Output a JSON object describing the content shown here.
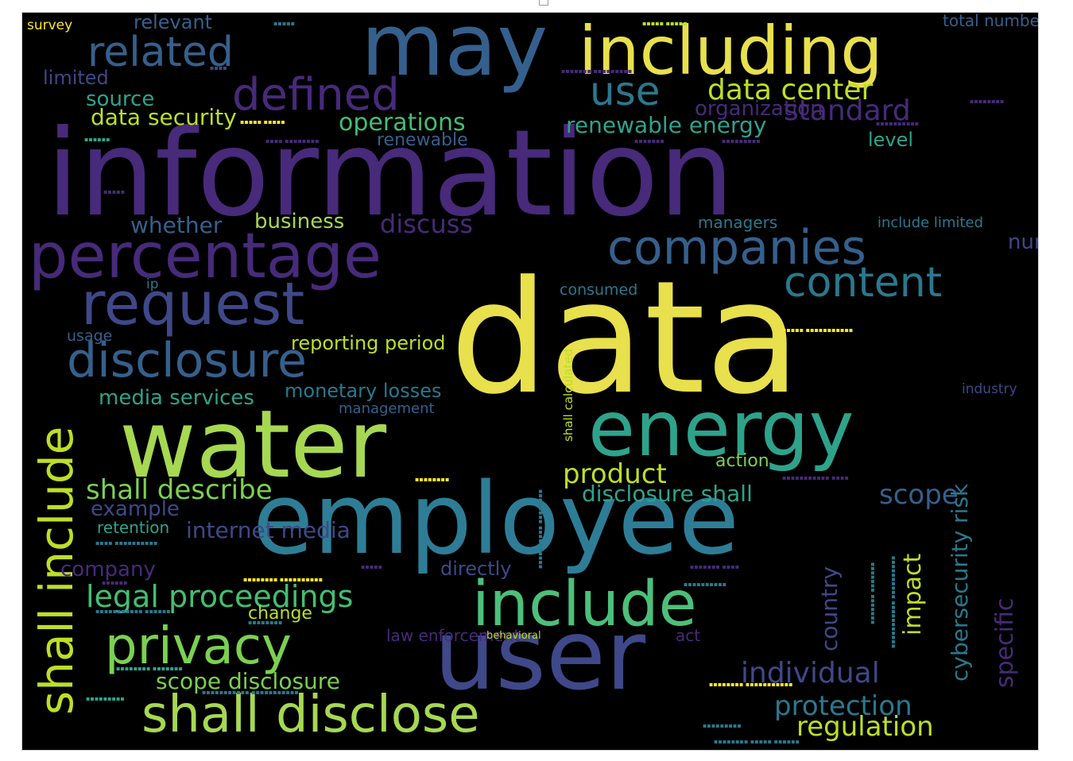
{
  "wordcloud": {
    "background": "#000000",
    "palette": {
      "purple": "#472a7a",
      "indigo": "#3f4889",
      "blue": "#35608d",
      "steel": "#2a788e",
      "teal": "#21918c",
      "green": "#22a884",
      "lightgreen": "#43bf71",
      "lime": "#7ad151",
      "yellowgreen": "#bddf26",
      "yellow": "#fde725"
    },
    "words": [
      {
        "text": "information",
        "color": "#472a7a"
      },
      {
        "text": "data",
        "color": "#e8e04c"
      },
      {
        "text": "water",
        "color": "#a6d852"
      },
      {
        "text": "employee",
        "color": "#2e7d96"
      },
      {
        "text": "user",
        "color": "#3f4889"
      },
      {
        "text": "may",
        "color": "#35608d"
      },
      {
        "text": "including",
        "color": "#e8e04c"
      },
      {
        "text": "energy",
        "color": "#2ea38b"
      },
      {
        "text": "percentage",
        "color": "#472a7a"
      },
      {
        "text": "request",
        "color": "#3f4889"
      },
      {
        "text": "companies",
        "color": "#35608d"
      },
      {
        "text": "include",
        "color": "#4cc07a"
      },
      {
        "text": "disclosure",
        "color": "#35608d"
      },
      {
        "text": "shall disclose",
        "color": "#a6d852"
      },
      {
        "text": "privacy",
        "color": "#7ad151"
      },
      {
        "text": "content",
        "color": "#2a788e"
      },
      {
        "text": "defined",
        "color": "#472a7a"
      },
      {
        "text": "related",
        "color": "#35608d"
      },
      {
        "text": "use",
        "color": "#2a788e"
      },
      {
        "text": "shall include",
        "color": "#bddf26"
      },
      {
        "text": "data center",
        "color": "#bddf26"
      },
      {
        "text": "standard",
        "color": "#472a7a"
      },
      {
        "text": "legal proceedings",
        "color": "#43bf71"
      },
      {
        "text": "shall describe",
        "color": "#7ad151"
      },
      {
        "text": "protection",
        "color": "#2a788e"
      },
      {
        "text": "regulation",
        "color": "#bddf26"
      },
      {
        "text": "individual",
        "color": "#3f4889"
      },
      {
        "text": "scope disclosure",
        "color": "#7ad151"
      },
      {
        "text": "product",
        "color": "#bddf26"
      },
      {
        "text": "operations",
        "color": "#43bf71"
      },
      {
        "text": "disclosure shall",
        "color": "#2ea38b"
      },
      {
        "text": "scope",
        "color": "#35608d"
      },
      {
        "text": "renewable energy",
        "color": "#472a7a"
      },
      {
        "text": "data security",
        "color": "#2a788e"
      },
      {
        "text": "source",
        "color": "#bddf26"
      },
      {
        "text": "limited",
        "color": "#3f4889"
      },
      {
        "text": "relevant",
        "color": "#2ea38b"
      },
      {
        "text": "survey",
        "color": "#bddf26"
      },
      {
        "text": "discuss",
        "color": "#2ea38b"
      },
      {
        "text": "whether",
        "color": "#3f4889"
      },
      {
        "text": "business",
        "color": "#35608d"
      },
      {
        "text": "managers",
        "color": "#fde725"
      },
      {
        "text": "include limited",
        "color": "#472a7a"
      },
      {
        "text": "number",
        "color": "#35608d"
      },
      {
        "text": "level",
        "color": "#a6d852"
      },
      {
        "text": "organization",
        "color": "#2a788e"
      },
      {
        "text": "renewable",
        "color": "#2a788e"
      },
      {
        "text": "ip",
        "color": "#3f4889"
      },
      {
        "text": "consumed",
        "color": "#2ea38b"
      },
      {
        "text": "usage",
        "color": "#472a7a"
      },
      {
        "text": "reporting period",
        "color": "#35608d"
      },
      {
        "text": "media services",
        "color": "#2a788e"
      },
      {
        "text": "monetary losses",
        "color": "#2a788e"
      },
      {
        "text": "management",
        "color": "#35608d"
      },
      {
        "text": "action",
        "color": "#bddf26"
      },
      {
        "text": "example",
        "color": "#2ea38b"
      },
      {
        "text": "retention",
        "color": "#2a788e"
      },
      {
        "text": "internet media",
        "color": "#35608d"
      },
      {
        "text": "company",
        "color": "#7ad151"
      },
      {
        "text": "directly",
        "color": "#3f4889"
      },
      {
        "text": "change",
        "color": "#2ea38b"
      },
      {
        "text": "act",
        "color": "#3f4889"
      },
      {
        "text": "law enforcement",
        "color": "#472a7a"
      },
      {
        "text": "behavioral",
        "color": "#3f4889"
      },
      {
        "text": "industry",
        "color": "#bddf26"
      },
      {
        "text": "total number",
        "color": "#472a7a"
      },
      {
        "text": "specific",
        "color": "#472a7a"
      },
      {
        "text": "cybersecurity risk",
        "color": "#bddf26"
      },
      {
        "text": "impact",
        "color": "#3f4889"
      },
      {
        "text": "country",
        "color": "#35608d"
      },
      {
        "text": "shall calculated",
        "color": "#bddf26"
      }
    ]
  }
}
